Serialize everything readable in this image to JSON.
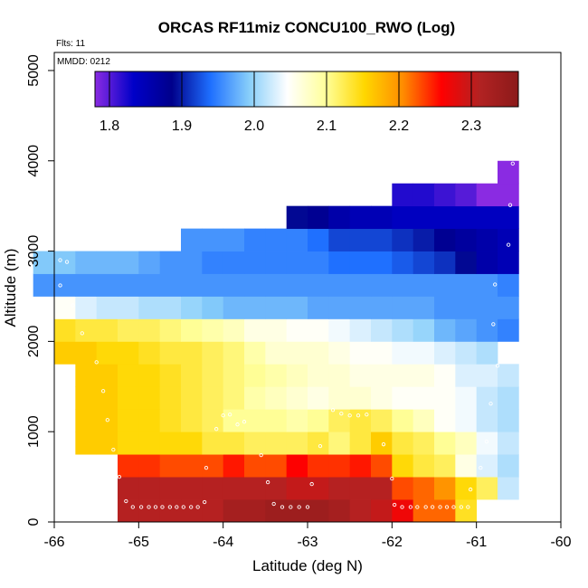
{
  "chart_data": {
    "type": "heatmap",
    "title": "ORCAS RF11miz CONCU100_RWO (Log)",
    "annotations": {
      "flights": "Flts: 11",
      "date": "MMDD: 0212"
    },
    "xlabel": "Latitude (deg N)",
    "ylabel": "Altitude (m)",
    "xlim": [
      -66,
      -60
    ],
    "ylim": [
      0,
      5200
    ],
    "xticks": [
      -66,
      -65,
      -64,
      -63,
      -62,
      -61,
      -60
    ],
    "xtick_labels": [
      "-66",
      "-65",
      "-64",
      "-63",
      "-62",
      "-61",
      "-60"
    ],
    "yticks": [
      0,
      1000,
      2000,
      3000,
      4000,
      5000
    ],
    "ytick_labels": [
      "0",
      "1000",
      "2000",
      "3000",
      "4000",
      "5000"
    ],
    "colorbar": {
      "range": [
        1.78,
        2.365
      ],
      "ticks": [
        1.8,
        1.9,
        2.0,
        2.1,
        2.2,
        2.3
      ],
      "tick_labels": [
        "1.8",
        "1.9",
        "2.0",
        "2.1",
        "2.2",
        "2.3"
      ],
      "palette": [
        "#8a2be2",
        "#0000c8",
        "#00008b",
        "#1e6fff",
        "#87cefa",
        "#ffffff",
        "#ffff99",
        "#ffd700",
        "#ff8c00",
        "#ff0000",
        "#b22222",
        "#8b1a1a"
      ]
    },
    "cell_width_deg": 0.25,
    "cell_height_m": 250,
    "rows": [
      {
        "alt": 0,
        "lat_start": -65.25,
        "values": [
          2.31,
          2.31,
          2.31,
          2.31,
          2.31,
          2.33,
          2.33,
          2.34,
          2.34,
          2.34,
          2.33,
          2.31,
          2.3,
          2.27,
          2.22,
          2.22,
          2.14
        ]
      },
      {
        "alt": 250,
        "lat_start": -65.25,
        "values": [
          2.31,
          2.31,
          2.31,
          2.31,
          2.31,
          2.31,
          2.31,
          2.31,
          2.3,
          2.3,
          2.31,
          2.31,
          2.31,
          2.23,
          2.22,
          2.2,
          2.15,
          2.12,
          2.02
        ]
      },
      {
        "alt": 500,
        "lat_start": -65.25,
        "values": [
          2.24,
          2.24,
          2.23,
          2.23,
          2.23,
          2.25,
          2.23,
          2.23,
          2.26,
          2.24,
          2.24,
          2.25,
          2.23,
          2.15,
          2.13,
          2.12,
          2.06,
          2.03,
          2.01
        ]
      },
      {
        "alt": 750,
        "lat_start": -65.75,
        "values": [
          2.16,
          2.16,
          2.15,
          2.15,
          2.15,
          2.15,
          2.13,
          2.13,
          2.12,
          2.12,
          2.12,
          2.13,
          2.11,
          2.13,
          2.16,
          2.13,
          2.12,
          2.1,
          2.08,
          2.04,
          2.02
        ]
      },
      {
        "alt": 1000,
        "lat_start": -65.75,
        "values": [
          2.16,
          2.16,
          2.15,
          2.15,
          2.14,
          2.13,
          2.12,
          2.1,
          2.1,
          2.1,
          2.09,
          2.1,
          2.12,
          2.13,
          2.12,
          2.1,
          2.08,
          2.05,
          2.04,
          2.02,
          2.01
        ]
      },
      {
        "alt": 1250,
        "lat_start": -65.75,
        "values": [
          2.16,
          2.16,
          2.15,
          2.15,
          2.14,
          2.13,
          2.12,
          2.11,
          2.09,
          2.08,
          2.07,
          2.06,
          2.07,
          2.07,
          2.06,
          2.05,
          2.05,
          2.05,
          2.04,
          2.02,
          2.01
        ]
      },
      {
        "alt": 1500,
        "lat_start": -65.75,
        "values": [
          2.16,
          2.16,
          2.15,
          2.15,
          2.14,
          2.13,
          2.12,
          2.11,
          2.1,
          2.09,
          2.08,
          2.07,
          2.07,
          2.06,
          2.06,
          2.06,
          2.06,
          2.05,
          2.03,
          2.03,
          2.02
        ]
      },
      {
        "alt": 1750,
        "lat_start": -66.0,
        "values": [
          2.16,
          2.16,
          2.15,
          2.15,
          2.14,
          2.13,
          2.13,
          2.12,
          2.11,
          2.09,
          2.07,
          2.07,
          2.07,
          2.06,
          2.05,
          2.05,
          2.04,
          2.04,
          2.03,
          2.02,
          2.01
        ]
      },
      {
        "alt": 2000,
        "lat_start": -66.0,
        "values": [
          2.14,
          2.13,
          2.13,
          2.12,
          2.12,
          2.11,
          2.1,
          2.09,
          2.08,
          2.06,
          2.06,
          2.05,
          2.05,
          2.04,
          2.03,
          2.02,
          2.01,
          2.0,
          1.98,
          1.97,
          1.96,
          1.95
        ]
      },
      {
        "alt": 2250,
        "lat_start": -66.0,
        "values": [
          2.05,
          2.03,
          2.02,
          2.02,
          2.01,
          2.01,
          2.0,
          1.99,
          1.98,
          1.98,
          1.98,
          1.98,
          1.97,
          1.97,
          1.97,
          1.97,
          1.97,
          1.97,
          1.96,
          1.96,
          1.96,
          1.96
        ]
      },
      {
        "alt": 2500,
        "lat_start": -66.25,
        "values": [
          1.96,
          1.96,
          1.96,
          1.96,
          1.96,
          1.96,
          1.96,
          1.96,
          1.96,
          1.96,
          1.96,
          1.96,
          1.96,
          1.96,
          1.96,
          1.96,
          1.96,
          1.96,
          1.96,
          1.96,
          1.96,
          1.96,
          1.95
        ]
      },
      {
        "alt": 2750,
        "lat_start": -66.25,
        "values": [
          1.99,
          1.99,
          1.98,
          1.98,
          1.98,
          1.97,
          1.96,
          1.96,
          1.95,
          1.95,
          1.95,
          1.95,
          1.95,
          1.95,
          1.94,
          1.94,
          1.94,
          1.93,
          1.92,
          1.91,
          1.89,
          1.86,
          1.85
        ]
      },
      {
        "alt": 3000,
        "lat_start": -64.5,
        "values": [
          1.96,
          1.96,
          1.96,
          1.95,
          1.95,
          1.95,
          1.94,
          1.92,
          1.92,
          1.92,
          1.91,
          1.9,
          1.88,
          1.87,
          1.86,
          1.85
        ]
      },
      {
        "alt": 3250,
        "lat_start": -63.25,
        "values": [
          1.89,
          1.88,
          1.86,
          1.85,
          1.85,
          1.84,
          1.84,
          1.84,
          1.84,
          1.84,
          1.84
        ]
      },
      {
        "alt": 3500,
        "lat_start": -62.0,
        "values": [
          1.82,
          1.82,
          1.81,
          1.8,
          1.78,
          1.78
        ]
      },
      {
        "alt": 3750,
        "lat_start": -60.75,
        "values": [
          1.78
        ]
      }
    ],
    "flight_points": [
      {
        "lat": -65.15,
        "alt": 230
      },
      {
        "lat": -65.07,
        "alt": 165
      },
      {
        "lat": -64.97,
        "alt": 165
      },
      {
        "lat": -64.88,
        "alt": 165
      },
      {
        "lat": -64.8,
        "alt": 165
      },
      {
        "lat": -64.72,
        "alt": 165
      },
      {
        "lat": -64.63,
        "alt": 165
      },
      {
        "lat": -64.55,
        "alt": 165
      },
      {
        "lat": -64.47,
        "alt": 165
      },
      {
        "lat": -64.38,
        "alt": 165
      },
      {
        "lat": -64.3,
        "alt": 165
      },
      {
        "lat": -64.22,
        "alt": 220
      },
      {
        "lat": -63.4,
        "alt": 200
      },
      {
        "lat": -63.3,
        "alt": 165
      },
      {
        "lat": -63.2,
        "alt": 165
      },
      {
        "lat": -63.1,
        "alt": 165
      },
      {
        "lat": -63.0,
        "alt": 165
      },
      {
        "lat": -61.97,
        "alt": 190
      },
      {
        "lat": -61.88,
        "alt": 165
      },
      {
        "lat": -61.78,
        "alt": 165
      },
      {
        "lat": -61.7,
        "alt": 165
      },
      {
        "lat": -61.6,
        "alt": 165
      },
      {
        "lat": -61.52,
        "alt": 165
      },
      {
        "lat": -61.43,
        "alt": 165
      },
      {
        "lat": -61.35,
        "alt": 165
      },
      {
        "lat": -61.27,
        "alt": 165
      },
      {
        "lat": -61.18,
        "alt": 165
      },
      {
        "lat": -61.1,
        "alt": 165
      },
      {
        "lat": -65.23,
        "alt": 500
      },
      {
        "lat": -65.3,
        "alt": 800
      },
      {
        "lat": -65.37,
        "alt": 1130
      },
      {
        "lat": -65.42,
        "alt": 1450
      },
      {
        "lat": -65.5,
        "alt": 1770
      },
      {
        "lat": -65.67,
        "alt": 2090
      },
      {
        "lat": -65.78,
        "alt": 2400
      },
      {
        "lat": -65.93,
        "alt": 2620
      },
      {
        "lat": -65.93,
        "alt": 2900
      },
      {
        "lat": -65.85,
        "alt": 2880
      },
      {
        "lat": -64.2,
        "alt": 600
      },
      {
        "lat": -64.08,
        "alt": 1030
      },
      {
        "lat": -64.0,
        "alt": 1180
      },
      {
        "lat": -63.92,
        "alt": 1190
      },
      {
        "lat": -63.83,
        "alt": 1080
      },
      {
        "lat": -63.75,
        "alt": 1110
      },
      {
        "lat": -63.55,
        "alt": 740
      },
      {
        "lat": -63.47,
        "alt": 440
      },
      {
        "lat": -62.95,
        "alt": 420
      },
      {
        "lat": -62.85,
        "alt": 840
      },
      {
        "lat": -62.7,
        "alt": 1240
      },
      {
        "lat": -62.6,
        "alt": 1200
      },
      {
        "lat": -62.5,
        "alt": 1180
      },
      {
        "lat": -62.4,
        "alt": 1180
      },
      {
        "lat": -62.3,
        "alt": 1190
      },
      {
        "lat": -62.1,
        "alt": 860
      },
      {
        "lat": -62.0,
        "alt": 480
      },
      {
        "lat": -61.07,
        "alt": 360
      },
      {
        "lat": -60.95,
        "alt": 600
      },
      {
        "lat": -60.88,
        "alt": 890
      },
      {
        "lat": -60.83,
        "alt": 1310
      },
      {
        "lat": -60.75,
        "alt": 1730
      },
      {
        "lat": -60.8,
        "alt": 2190
      },
      {
        "lat": -60.78,
        "alt": 2630
      },
      {
        "lat": -60.62,
        "alt": 3070
      },
      {
        "lat": -60.6,
        "alt": 3510
      },
      {
        "lat": -60.57,
        "alt": 3970
      }
    ]
  }
}
